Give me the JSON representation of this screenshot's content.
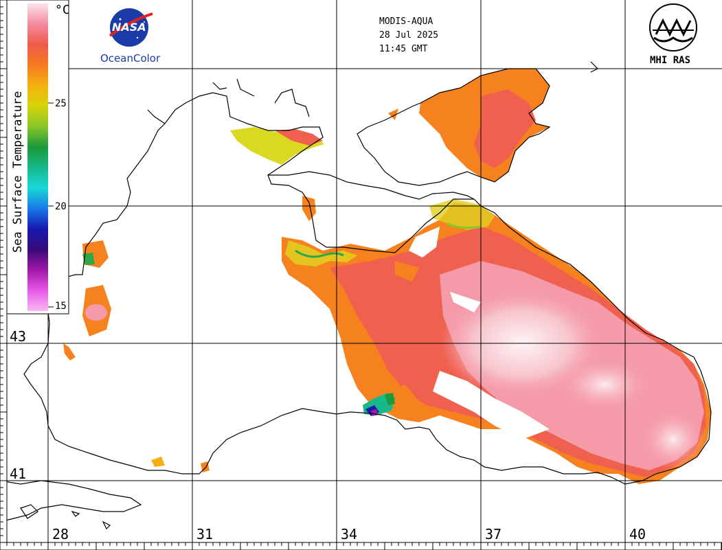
{
  "satellite": {
    "sensor": "MODIS-AQUA",
    "date": "28 Jul 2025",
    "time": "11:45 GMT"
  },
  "logos": {
    "nasa_text": "NASA",
    "oceancolor": "OceanColor",
    "mhi": "MHI RAS"
  },
  "colorbar": {
    "title": "Sea Surface Temperature",
    "unit": "°C",
    "ticks": [
      "25",
      "20",
      "15"
    ],
    "colors": [
      "#fbe3ea",
      "#f58aa0",
      "#f05a4a",
      "#f57a20",
      "#f5b010",
      "#d7d40a",
      "#8ac62a",
      "#1a9a3a",
      "#18b88a",
      "#18d8d8",
      "#1878e8",
      "#1818b0",
      "#3a0a7a",
      "#a018a8",
      "#e858e8",
      "#f8b8f0"
    ]
  },
  "map": {
    "longitudes": [
      "28",
      "31",
      "34",
      "37",
      "40"
    ],
    "latitudes": [
      "43",
      "41"
    ],
    "colors": {
      "land": "#ffffff",
      "coast": "#000000",
      "warm": "#f0604e",
      "orange": "#f5821e",
      "pink": "#f59aa8",
      "hot": "#fbe6ec",
      "yellow": "#e0d020",
      "green": "#2aa84a"
    }
  }
}
